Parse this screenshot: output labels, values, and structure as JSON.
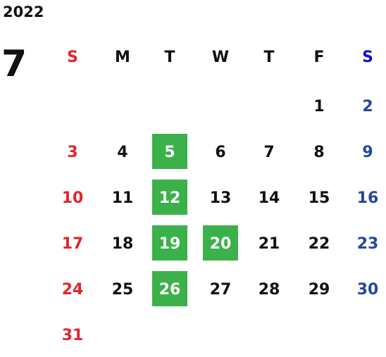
{
  "year": "2022",
  "month": "7",
  "weekdays": [
    "S",
    "M",
    "T",
    "W",
    "T",
    "F",
    "S"
  ],
  "weeks": [
    [
      null,
      null,
      null,
      null,
      null,
      1,
      2
    ],
    [
      3,
      4,
      5,
      6,
      7,
      8,
      9
    ],
    [
      10,
      11,
      12,
      13,
      14,
      15,
      16
    ],
    [
      17,
      18,
      19,
      20,
      21,
      22,
      23
    ],
    [
      24,
      25,
      26,
      27,
      28,
      29,
      30
    ],
    [
      31,
      null,
      null,
      null,
      null,
      null,
      null
    ]
  ],
  "highlighted_days": [
    5,
    12,
    19,
    20,
    26
  ],
  "highlight_color": "#3bb14a"
}
